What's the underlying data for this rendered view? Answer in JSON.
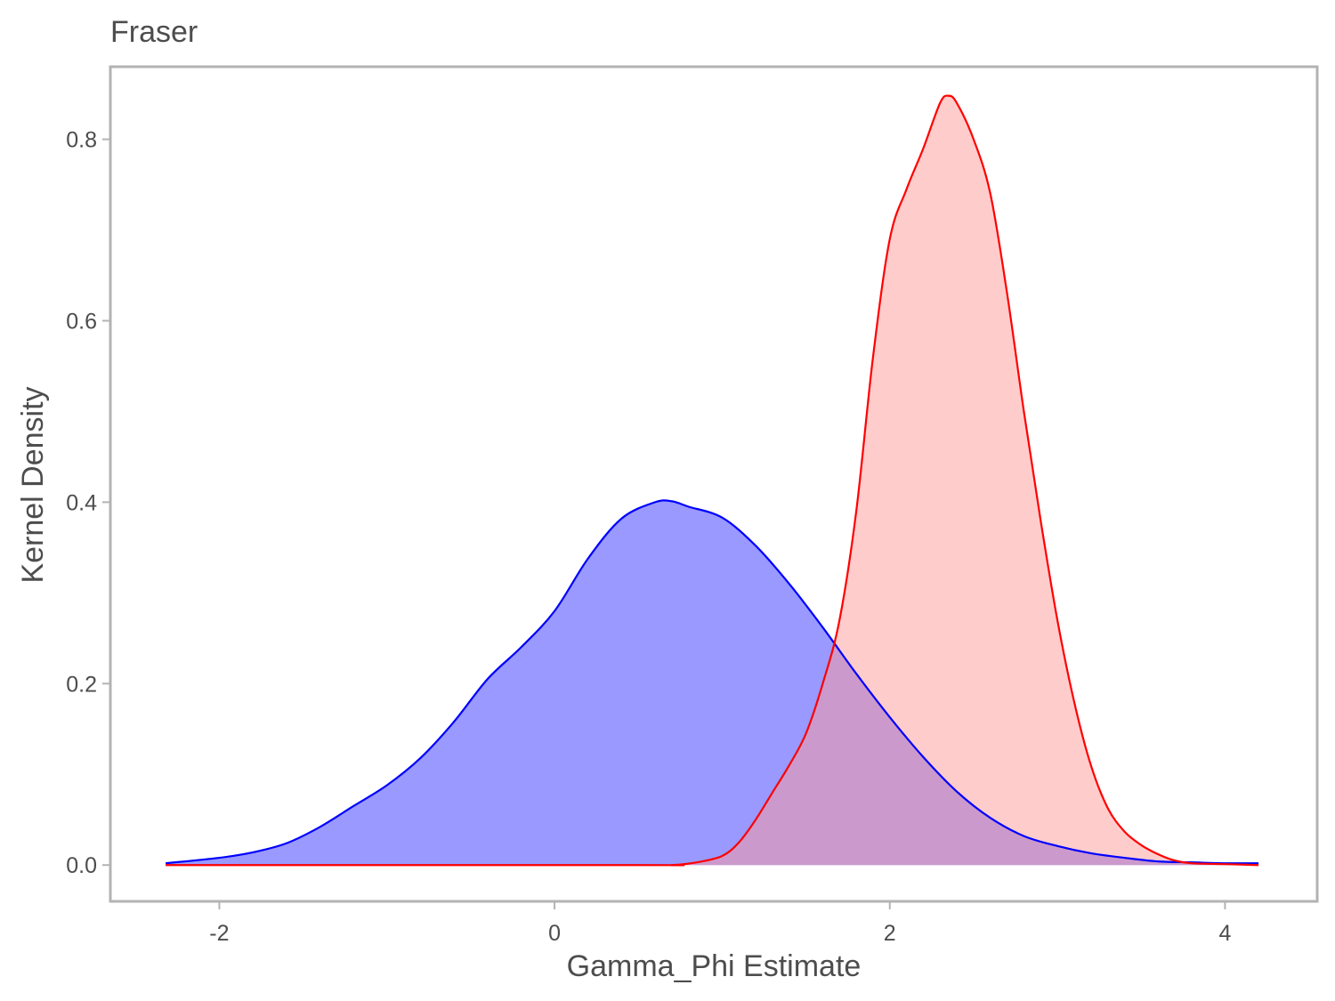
{
  "chart_data": {
    "type": "area",
    "title": "Fraser",
    "xlabel": "Gamma_Phi Estimate",
    "ylabel": "Kernel Density",
    "xlim": [
      -2.65,
      4.55
    ],
    "ylim": [
      -0.04,
      0.88
    ],
    "x_ticks": [
      -2,
      0,
      2,
      4
    ],
    "y_ticks": [
      0.0,
      0.2,
      0.4,
      0.6,
      0.8
    ],
    "x_tick_labels": [
      "-2",
      "0",
      "2",
      "4"
    ],
    "y_tick_labels": [
      "0.0",
      "0.2",
      "0.4",
      "0.6",
      "0.8"
    ],
    "grid": false,
    "legend": "none",
    "series": [
      {
        "fill": "#9999ff",
        "stroke": "#0000ff",
        "x": [
          -2.32,
          -2.0,
          -1.8,
          -1.6,
          -1.4,
          -1.2,
          -1.0,
          -0.8,
          -0.6,
          -0.4,
          -0.2,
          0.0,
          0.2,
          0.4,
          0.6,
          0.7,
          0.8,
          1.0,
          1.2,
          1.4,
          1.6,
          1.8,
          2.0,
          2.2,
          2.4,
          2.6,
          2.8,
          3.0,
          3.2,
          3.4,
          3.6,
          3.8,
          4.0,
          4.2
        ],
        "y": [
          0.002,
          0.008,
          0.014,
          0.024,
          0.042,
          0.065,
          0.088,
          0.118,
          0.158,
          0.205,
          0.24,
          0.28,
          0.338,
          0.382,
          0.4,
          0.401,
          0.395,
          0.383,
          0.352,
          0.31,
          0.262,
          0.211,
          0.163,
          0.119,
          0.081,
          0.052,
          0.032,
          0.021,
          0.013,
          0.008,
          0.004,
          0.003,
          0.002,
          0.002
        ]
      },
      {
        "fill": "#ff9999",
        "stroke": "#ff0000",
        "x": [
          -2.32,
          0.5,
          0.7,
          0.85,
          1.0,
          1.1,
          1.2,
          1.3,
          1.4,
          1.5,
          1.6,
          1.7,
          1.8,
          1.9,
          2.0,
          2.1,
          2.2,
          2.3,
          2.35,
          2.4,
          2.5,
          2.6,
          2.7,
          2.8,
          2.9,
          3.0,
          3.1,
          3.2,
          3.3,
          3.4,
          3.5,
          3.6,
          3.7,
          3.8,
          4.0,
          4.2
        ],
        "y": [
          0.0,
          0.0,
          0.0,
          0.003,
          0.01,
          0.025,
          0.05,
          0.08,
          0.11,
          0.145,
          0.2,
          0.27,
          0.39,
          0.56,
          0.69,
          0.745,
          0.79,
          0.84,
          0.848,
          0.84,
          0.8,
          0.74,
          0.63,
          0.5,
          0.38,
          0.27,
          0.18,
          0.11,
          0.063,
          0.037,
          0.022,
          0.012,
          0.005,
          0.002,
          0.001,
          0.0
        ]
      }
    ]
  }
}
